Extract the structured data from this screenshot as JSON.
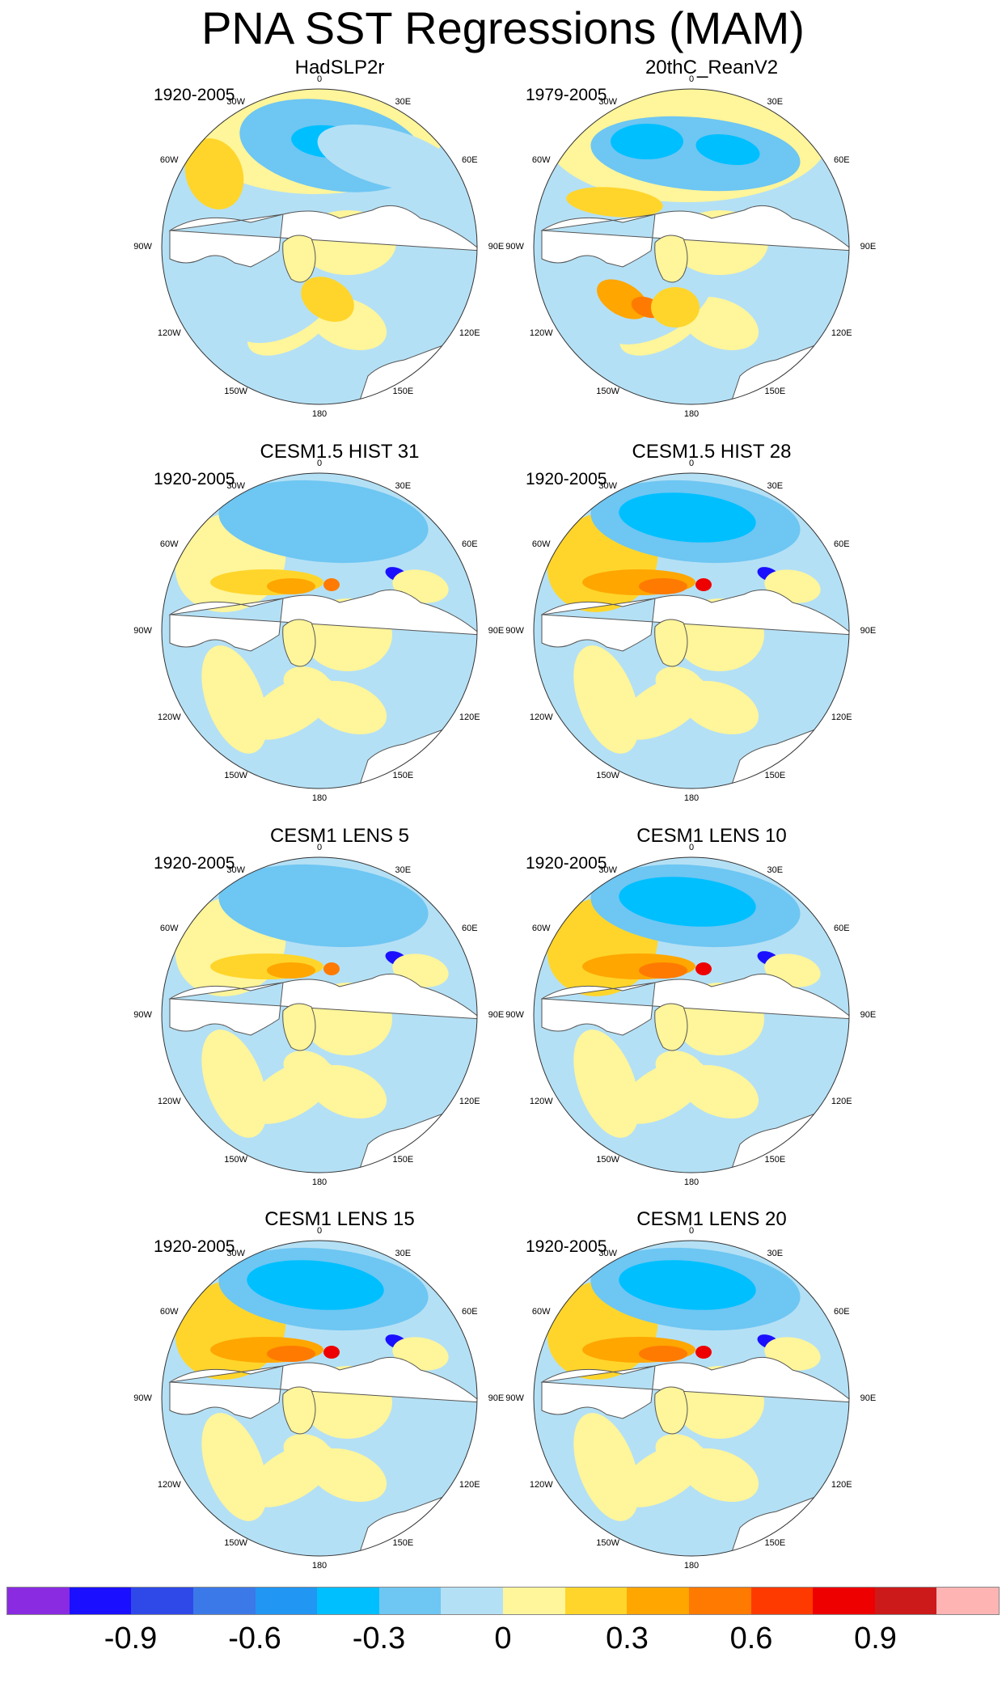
{
  "title": "PNA SST Regressions (MAM)",
  "lon_labels": [
    "180",
    "150E",
    "120E",
    "90E",
    "60E",
    "30E",
    "0",
    "30W",
    "60W",
    "90W",
    "120W",
    "150W"
  ],
  "panels": [
    {
      "id": "hadslp2r",
      "title": "HadSLP2r",
      "period": "1920-2005",
      "pattern": "hadslp"
    },
    {
      "id": "20thc",
      "title": "20thC_ReanV2",
      "period": "1979-2005",
      "pattern": "reanv2"
    },
    {
      "id": "hist31",
      "title": "CESM1.5 HIST 31",
      "period": "1920-2005",
      "pattern": "model"
    },
    {
      "id": "hist28",
      "title": "CESM1.5 HIST 28",
      "period": "1920-2005",
      "pattern": "model_strong"
    },
    {
      "id": "lens5",
      "title": "CESM1 LENS 5",
      "period": "1920-2005",
      "pattern": "model"
    },
    {
      "id": "lens10",
      "title": "CESM1 LENS 10",
      "period": "1920-2005",
      "pattern": "model_strong"
    },
    {
      "id": "lens15",
      "title": "CESM1 LENS 15",
      "period": "1920-2005",
      "pattern": "model_strong"
    },
    {
      "id": "lens20",
      "title": "CESM1 LENS 20",
      "period": "1920-2005",
      "pattern": "model_strong"
    }
  ],
  "colorbar": {
    "colors": [
      "#8a2be2",
      "#1a10ff",
      "#2e49e8",
      "#3c79e8",
      "#2196f3",
      "#00bfff",
      "#6ec6f2",
      "#b4e0f5",
      "#fff59a",
      "#ffd52b",
      "#ffa600",
      "#ff7a00",
      "#ff3a00",
      "#ee0000",
      "#cc1a1a",
      "#ffb4b4"
    ],
    "labels": [
      "-0.9",
      "-0.6",
      "-0.3",
      "0",
      "0.3",
      "0.6",
      "0.9"
    ]
  },
  "legend_palette": {
    "neg_strong": "#00bfff",
    "neg_mid": "#6ec6f2",
    "neg_weak": "#b4e0f5",
    "pos_weak": "#fff59a",
    "pos_mid": "#ffd52b",
    "pos_strong": "#ffa600",
    "pos_vstrong": "#ff7a00",
    "pos_extreme": "#ee0000",
    "neg_extreme": "#1a10ff",
    "land": "#ffffff",
    "coast": "#555555"
  }
}
